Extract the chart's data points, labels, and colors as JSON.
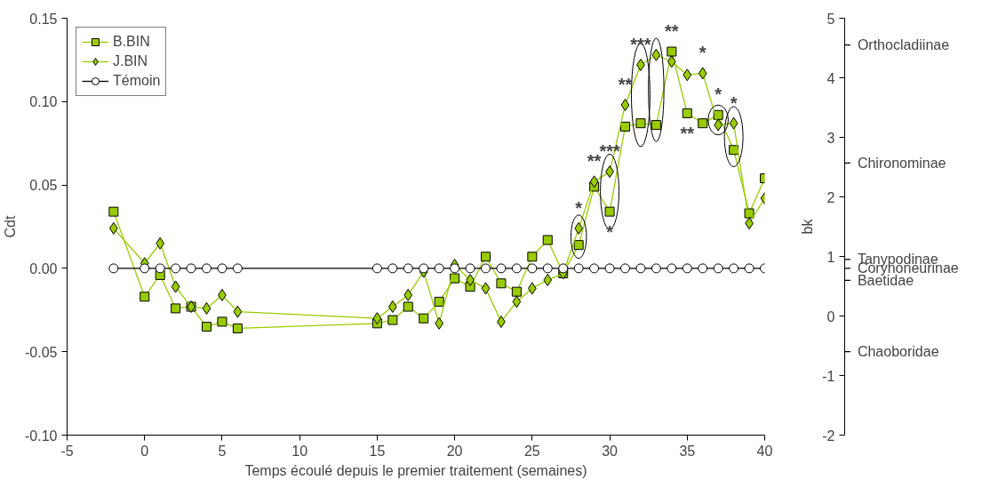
{
  "chart_data": {
    "type": "line",
    "xlabel": "Temps écoulé depuis le premier traitement (semaines)",
    "ylabel": "Cdt",
    "y2label": "bk",
    "x": [
      -2,
      0,
      1,
      2,
      3,
      4,
      5,
      6,
      15,
      16,
      17,
      18,
      19,
      20,
      21,
      22,
      23,
      24,
      25,
      26,
      27,
      28,
      29,
      30,
      31,
      32,
      33,
      34,
      35,
      36,
      37,
      38,
      39,
      40
    ],
    "series": [
      {
        "name": "B.BIN",
        "color": "#99cc00",
        "marker": "square",
        "values": [
          0.034,
          -0.017,
          -0.004,
          -0.024,
          -0.023,
          -0.035,
          -0.032,
          -0.036,
          -0.033,
          -0.031,
          -0.023,
          -0.03,
          -0.02,
          -0.006,
          -0.011,
          0.007,
          -0.009,
          -0.014,
          0.007,
          0.017,
          -0.003,
          0.014,
          0.049,
          0.034,
          0.085,
          0.087,
          0.086,
          0.13,
          0.093,
          0.087,
          0.092,
          0.071,
          0.033,
          0.054
        ]
      },
      {
        "name": "J.BIN",
        "color": "#99cc00",
        "marker": "diamond",
        "values": [
          0.024,
          0.003,
          0.015,
          -0.011,
          -0.023,
          -0.024,
          -0.016,
          -0.026,
          -0.03,
          -0.023,
          -0.016,
          -0.002,
          -0.033,
          0.002,
          -0.007,
          -0.012,
          -0.032,
          -0.02,
          -0.012,
          -0.007,
          -0.003,
          0.024,
          0.052,
          0.058,
          0.098,
          0.122,
          0.128,
          0.124,
          0.116,
          0.117,
          0.086,
          0.087,
          0.027,
          0.042
        ]
      },
      {
        "name": "Témoin",
        "color": "#ffffff",
        "marker": "circle",
        "values": [
          0,
          0,
          0,
          0,
          0,
          0,
          0,
          0,
          0,
          0,
          0,
          0,
          0,
          0,
          0,
          0,
          0,
          0,
          0,
          0,
          0,
          0,
          0,
          0,
          0,
          0,
          0,
          0,
          0,
          0,
          0,
          0,
          0,
          0
        ]
      }
    ],
    "xlim": [
      -5,
      40
    ],
    "xticks": [
      -5,
      0,
      5,
      10,
      15,
      20,
      25,
      30,
      35,
      40
    ],
    "ylim": [
      -0.1,
      0.15
    ],
    "yticks": [
      {
        "value": -0.1,
        "label": "-0.10"
      },
      {
        "value": -0.05,
        "label": "-0.05"
      },
      {
        "value": 0,
        "label": "0.00"
      },
      {
        "value": 0.05,
        "label": "0.05"
      },
      {
        "value": 0.1,
        "label": "0.10"
      },
      {
        "value": 0.15,
        "label": "0.15"
      }
    ],
    "y2lim": [
      -2,
      5
    ],
    "y2ticks": [
      -2,
      -1,
      0,
      1,
      2,
      3,
      4,
      5
    ],
    "ref_lines": [
      {
        "axis": "y2",
        "value": 4.55,
        "label": "Orthocladiinae"
      },
      {
        "axis": "y2",
        "value": 2.57,
        "label": "Chironominae"
      },
      {
        "axis": "y2",
        "value": 0.95,
        "label": "Tanypodinae"
      },
      {
        "axis": "y2",
        "value": 0.8,
        "label": "Corynoneurinae"
      },
      {
        "axis": "y2",
        "value": 0.6,
        "label": "Baetidae"
      },
      {
        "axis": "y2",
        "value": -0.6,
        "label": "Chaoboridae"
      }
    ],
    "grid": false,
    "legend": "top left",
    "annotations": [
      {
        "text": "*",
        "x": 28,
        "y": 0.024
      },
      {
        "text": "**",
        "x": 29,
        "y": 0.052
      },
      {
        "text": "***",
        "x": 30,
        "y": 0.058
      },
      {
        "text": "*",
        "x": 30,
        "y": 0.034
      },
      {
        "text": "**",
        "x": 31,
        "y": 0.098
      },
      {
        "text": "***",
        "x": 32,
        "y": 0.122
      },
      {
        "text": "**",
        "x": 34,
        "y": 0.13
      },
      {
        "text": "**",
        "x": 35,
        "y": 0.093
      },
      {
        "text": "*",
        "x": 36,
        "y": 0.117
      },
      {
        "text": "*",
        "x": 37,
        "y": 0.092
      },
      {
        "text": "*",
        "x": 38,
        "y": 0.087
      }
    ]
  }
}
